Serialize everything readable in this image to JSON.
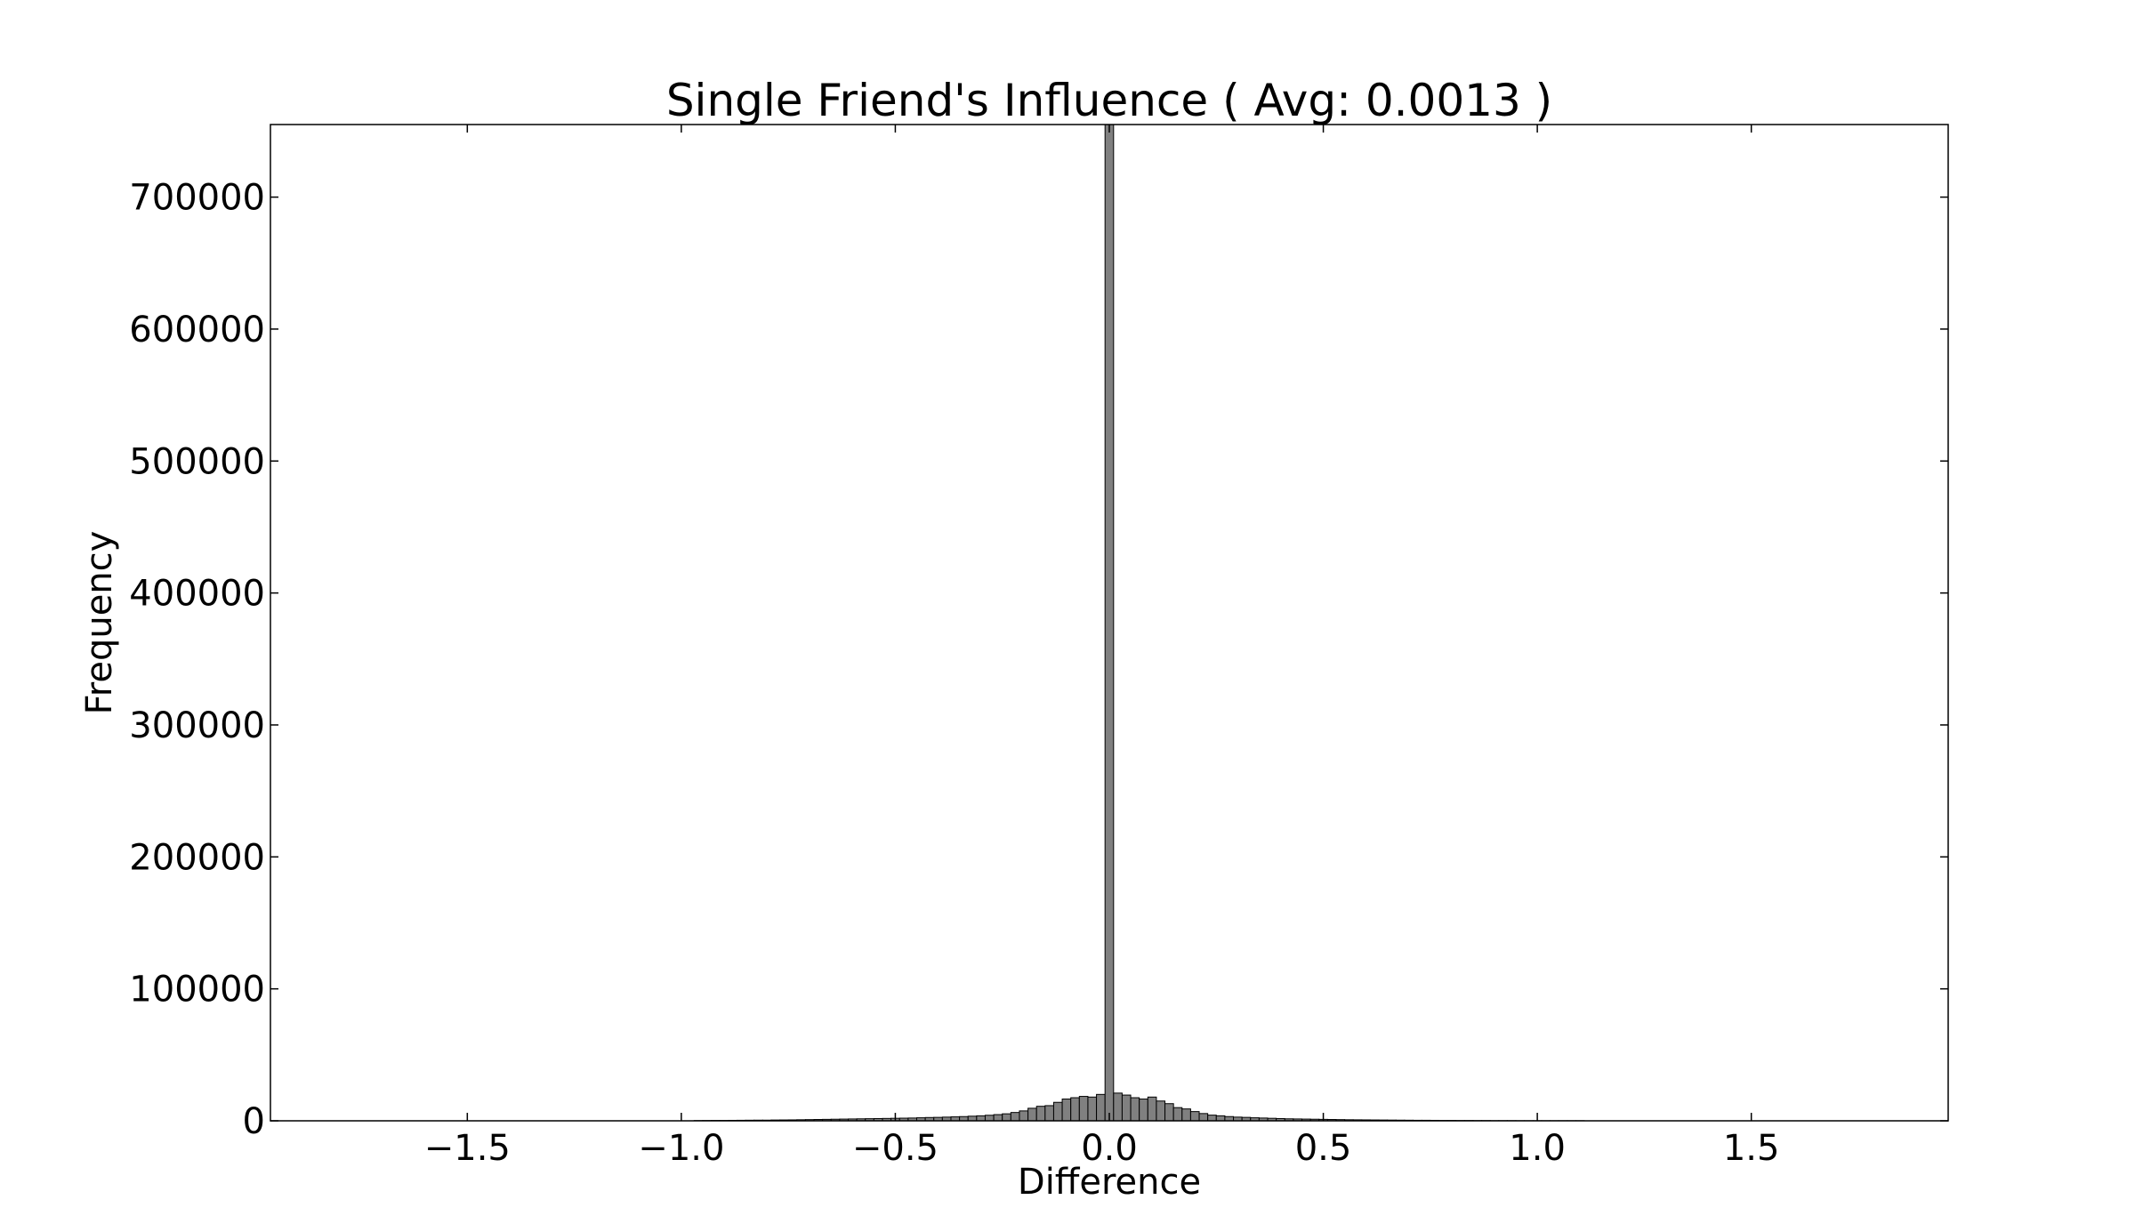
{
  "chart_data": {
    "type": "bar",
    "title": "Single Friend's Influence ( Avg: 0.0013 )",
    "xlabel": "Difference",
    "ylabel": "Frequency",
    "xlim": [
      -1.96,
      1.96
    ],
    "ylim": [
      0,
      755000
    ],
    "x_ticks": [
      -1.5,
      -1.0,
      -0.5,
      0.0,
      0.5,
      1.0,
      1.5
    ],
    "x_tick_labels": [
      "−1.5",
      "−1.0",
      "−0.5",
      "0.0",
      "0.5",
      "1.0",
      "1.5"
    ],
    "y_ticks": [
      0,
      100000,
      200000,
      300000,
      400000,
      500000,
      600000,
      700000
    ],
    "y_tick_labels": [
      "0",
      "100000",
      "200000",
      "300000",
      "400000",
      "500000",
      "600000",
      "700000"
    ],
    "bin_width": 0.02,
    "bins": [
      {
        "x": -0.96,
        "y": 200
      },
      {
        "x": -0.94,
        "y": 250
      },
      {
        "x": -0.92,
        "y": 300
      },
      {
        "x": -0.9,
        "y": 300
      },
      {
        "x": -0.88,
        "y": 350
      },
      {
        "x": -0.86,
        "y": 400
      },
      {
        "x": -0.84,
        "y": 450
      },
      {
        "x": -0.82,
        "y": 500
      },
      {
        "x": -0.8,
        "y": 500
      },
      {
        "x": -0.78,
        "y": 600
      },
      {
        "x": -0.76,
        "y": 650
      },
      {
        "x": -0.74,
        "y": 700
      },
      {
        "x": -0.72,
        "y": 800
      },
      {
        "x": -0.7,
        "y": 900
      },
      {
        "x": -0.68,
        "y": 1000
      },
      {
        "x": -0.66,
        "y": 1100
      },
      {
        "x": -0.64,
        "y": 1200
      },
      {
        "x": -0.62,
        "y": 1300
      },
      {
        "x": -0.6,
        "y": 1400
      },
      {
        "x": -0.58,
        "y": 1500
      },
      {
        "x": -0.56,
        "y": 1600
      },
      {
        "x": -0.54,
        "y": 1700
      },
      {
        "x": -0.52,
        "y": 1800
      },
      {
        "x": -0.5,
        "y": 1900
      },
      {
        "x": -0.48,
        "y": 2000
      },
      {
        "x": -0.46,
        "y": 2100
      },
      {
        "x": -0.44,
        "y": 2300
      },
      {
        "x": -0.42,
        "y": 2500
      },
      {
        "x": -0.4,
        "y": 2600
      },
      {
        "x": -0.38,
        "y": 2800
      },
      {
        "x": -0.36,
        "y": 3000
      },
      {
        "x": -0.34,
        "y": 3200
      },
      {
        "x": -0.32,
        "y": 3500
      },
      {
        "x": -0.3,
        "y": 3800
      },
      {
        "x": -0.28,
        "y": 4200
      },
      {
        "x": -0.26,
        "y": 4700
      },
      {
        "x": -0.24,
        "y": 5300
      },
      {
        "x": -0.22,
        "y": 6300
      },
      {
        "x": -0.2,
        "y": 7500
      },
      {
        "x": -0.18,
        "y": 9500
      },
      {
        "x": -0.16,
        "y": 11000
      },
      {
        "x": -0.14,
        "y": 11500
      },
      {
        "x": -0.12,
        "y": 14000
      },
      {
        "x": -0.1,
        "y": 16500
      },
      {
        "x": -0.08,
        "y": 17500
      },
      {
        "x": -0.06,
        "y": 18500
      },
      {
        "x": -0.04,
        "y": 18000
      },
      {
        "x": -0.02,
        "y": 20000
      },
      {
        "x": 0.0,
        "y": 755000
      },
      {
        "x": 0.02,
        "y": 21000
      },
      {
        "x": 0.04,
        "y": 19500
      },
      {
        "x": 0.06,
        "y": 17500
      },
      {
        "x": 0.08,
        "y": 16500
      },
      {
        "x": 0.1,
        "y": 18000
      },
      {
        "x": 0.12,
        "y": 15000
      },
      {
        "x": 0.14,
        "y": 13000
      },
      {
        "x": 0.16,
        "y": 10000
      },
      {
        "x": 0.18,
        "y": 9000
      },
      {
        "x": 0.2,
        "y": 7000
      },
      {
        "x": 0.22,
        "y": 5500
      },
      {
        "x": 0.24,
        "y": 4300
      },
      {
        "x": 0.26,
        "y": 3800
      },
      {
        "x": 0.28,
        "y": 3200
      },
      {
        "x": 0.3,
        "y": 2800
      },
      {
        "x": 0.32,
        "y": 2600
      },
      {
        "x": 0.34,
        "y": 2300
      },
      {
        "x": 0.36,
        "y": 2100
      },
      {
        "x": 0.38,
        "y": 1900
      },
      {
        "x": 0.4,
        "y": 1700
      },
      {
        "x": 0.42,
        "y": 1500
      },
      {
        "x": 0.44,
        "y": 1400
      },
      {
        "x": 0.46,
        "y": 1300
      },
      {
        "x": 0.48,
        "y": 1200
      },
      {
        "x": 0.5,
        "y": 1100
      },
      {
        "x": 0.52,
        "y": 1000
      },
      {
        "x": 0.54,
        "y": 900
      },
      {
        "x": 0.56,
        "y": 800
      },
      {
        "x": 0.58,
        "y": 750
      },
      {
        "x": 0.6,
        "y": 700
      },
      {
        "x": 0.62,
        "y": 650
      },
      {
        "x": 0.64,
        "y": 600
      },
      {
        "x": 0.66,
        "y": 550
      },
      {
        "x": 0.68,
        "y": 500
      },
      {
        "x": 0.7,
        "y": 450
      },
      {
        "x": 0.72,
        "y": 400
      },
      {
        "x": 0.74,
        "y": 400
      },
      {
        "x": 0.76,
        "y": 350
      },
      {
        "x": 0.78,
        "y": 300
      },
      {
        "x": 0.8,
        "y": 300
      },
      {
        "x": 0.82,
        "y": 250
      },
      {
        "x": 0.84,
        "y": 250
      },
      {
        "x": 0.86,
        "y": 200
      },
      {
        "x": 0.88,
        "y": 200
      },
      {
        "x": 0.9,
        "y": 150
      },
      {
        "x": 0.92,
        "y": 150
      },
      {
        "x": 0.94,
        "y": 150
      },
      {
        "x": 0.96,
        "y": 100
      },
      {
        "x": 0.98,
        "y": 100
      },
      {
        "x": 1.0,
        "y": 100
      },
      {
        "x": 1.02,
        "y": 100
      },
      {
        "x": 1.04,
        "y": 100
      },
      {
        "x": 1.06,
        "y": 100
      },
      {
        "x": 1.08,
        "y": 100
      },
      {
        "x": 1.1,
        "y": 100
      }
    ],
    "bar_fill": "#808080",
    "bar_edge": "#000000",
    "grid": false
  }
}
